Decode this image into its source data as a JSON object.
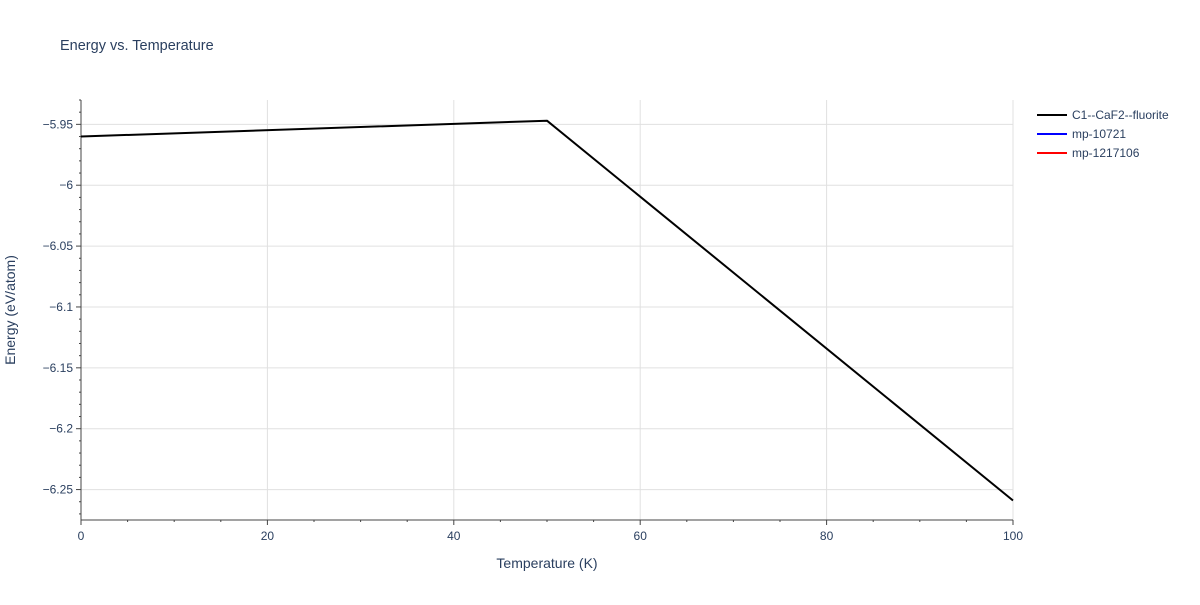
{
  "chart_data": {
    "type": "line",
    "title": "Energy vs. Temperature",
    "xlabel": "Temperature (K)",
    "ylabel": "Energy (eV/atom)",
    "xlim": [
      0,
      100
    ],
    "ylim": [
      -6.275,
      -5.93
    ],
    "x_ticks": [
      0,
      20,
      40,
      60,
      80,
      100
    ],
    "x_tick_labels": [
      "0",
      "20",
      "40",
      "60",
      "80",
      "100"
    ],
    "y_ticks": [
      -5.95,
      -6.0,
      -6.05,
      -6.1,
      -6.15,
      -6.2,
      -6.25
    ],
    "y_tick_labels": [
      "−5.95",
      "−6",
      "−6.05",
      "−6.1",
      "−6.15",
      "−6.2",
      "−6.25"
    ],
    "grid": true,
    "legend_position": "top-right-outside",
    "series": [
      {
        "name": "C1--CaF2--fluorite",
        "color": "#000000",
        "x": [
          0,
          50,
          100
        ],
        "y": [
          -5.96,
          -5.947,
          -6.259
        ]
      },
      {
        "name": "mp-10721",
        "color": "#0000ff",
        "x": [],
        "y": []
      },
      {
        "name": "mp-1217106",
        "color": "#ff0000",
        "x": [],
        "y": []
      }
    ]
  }
}
